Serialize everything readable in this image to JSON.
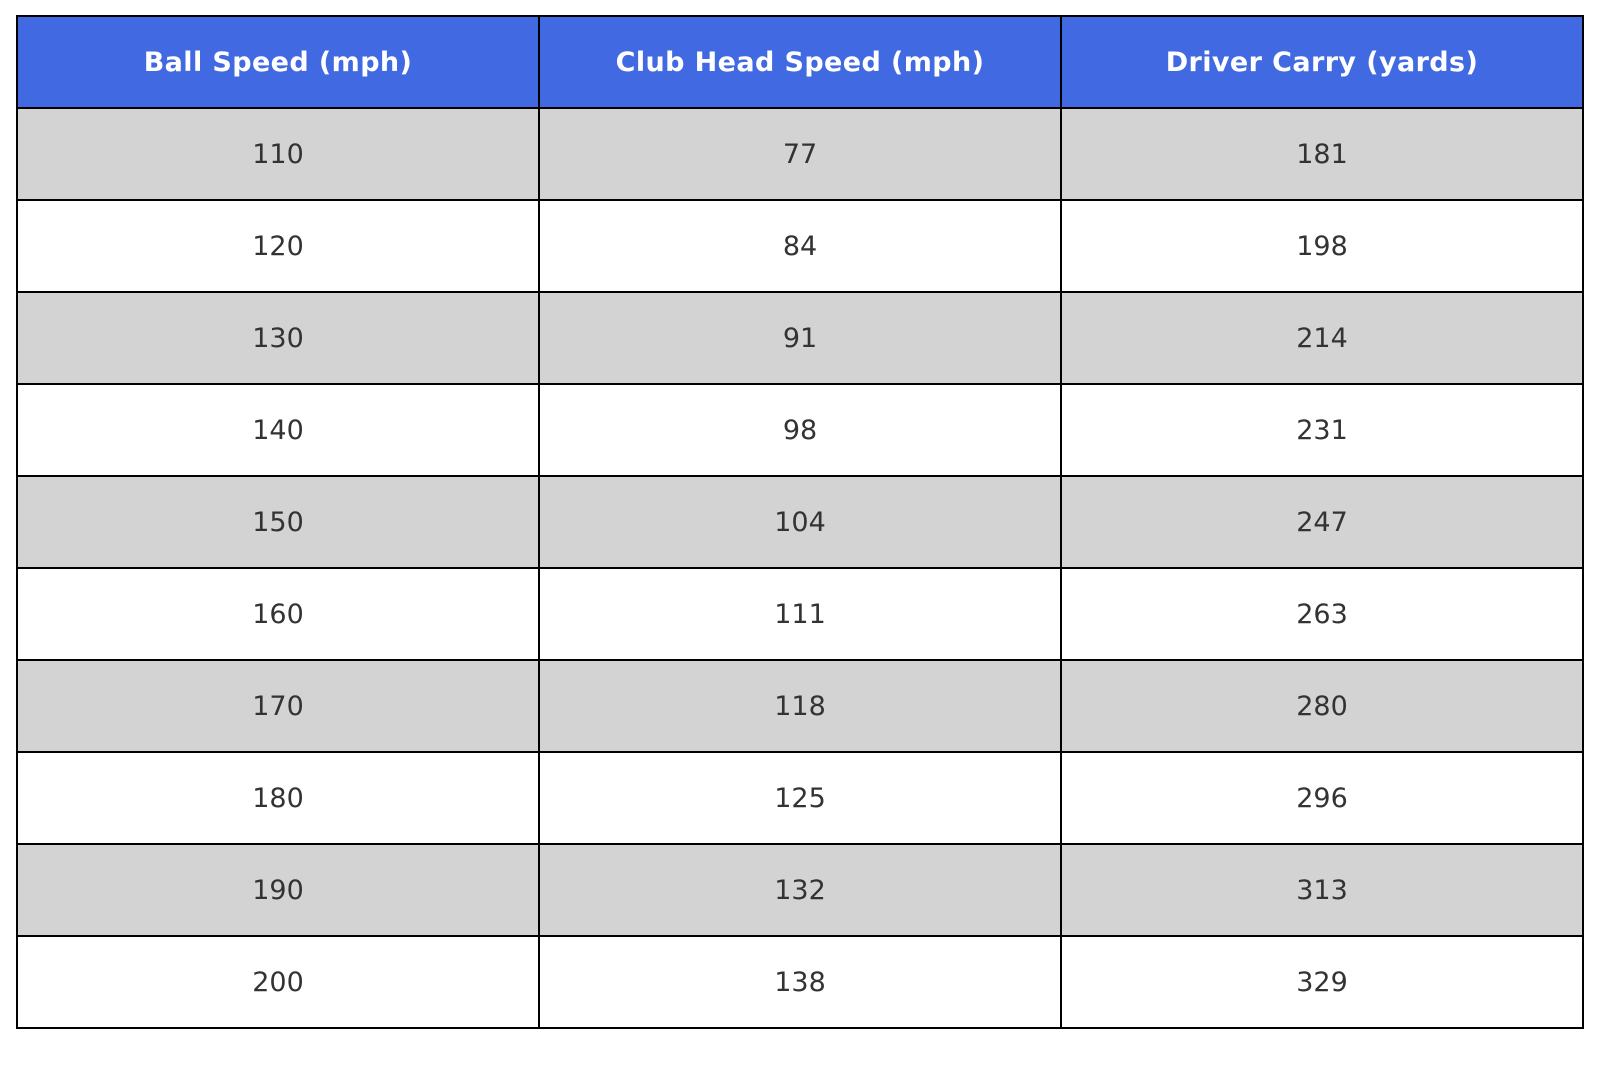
{
  "chart_data": {
    "type": "table",
    "columns": [
      "Ball Speed (mph)",
      "Club Head Speed (mph)",
      "Driver Carry (yards)"
    ],
    "rows": [
      [
        "110",
        "77",
        "181"
      ],
      [
        "120",
        "84",
        "198"
      ],
      [
        "130",
        "91",
        "214"
      ],
      [
        "140",
        "98",
        "231"
      ],
      [
        "150",
        "104",
        "247"
      ],
      [
        "160",
        "111",
        "263"
      ],
      [
        "170",
        "118",
        "280"
      ],
      [
        "180",
        "125",
        "296"
      ],
      [
        "190",
        "132",
        "313"
      ],
      [
        "200",
        "138",
        "329"
      ]
    ]
  },
  "colors": {
    "header_bg": "#4169e1",
    "header_text": "#ffffff",
    "row_odd_bg": "#d3d3d3",
    "row_even_bg": "#ffffff",
    "cell_text": "#333333",
    "border": "#000000"
  }
}
